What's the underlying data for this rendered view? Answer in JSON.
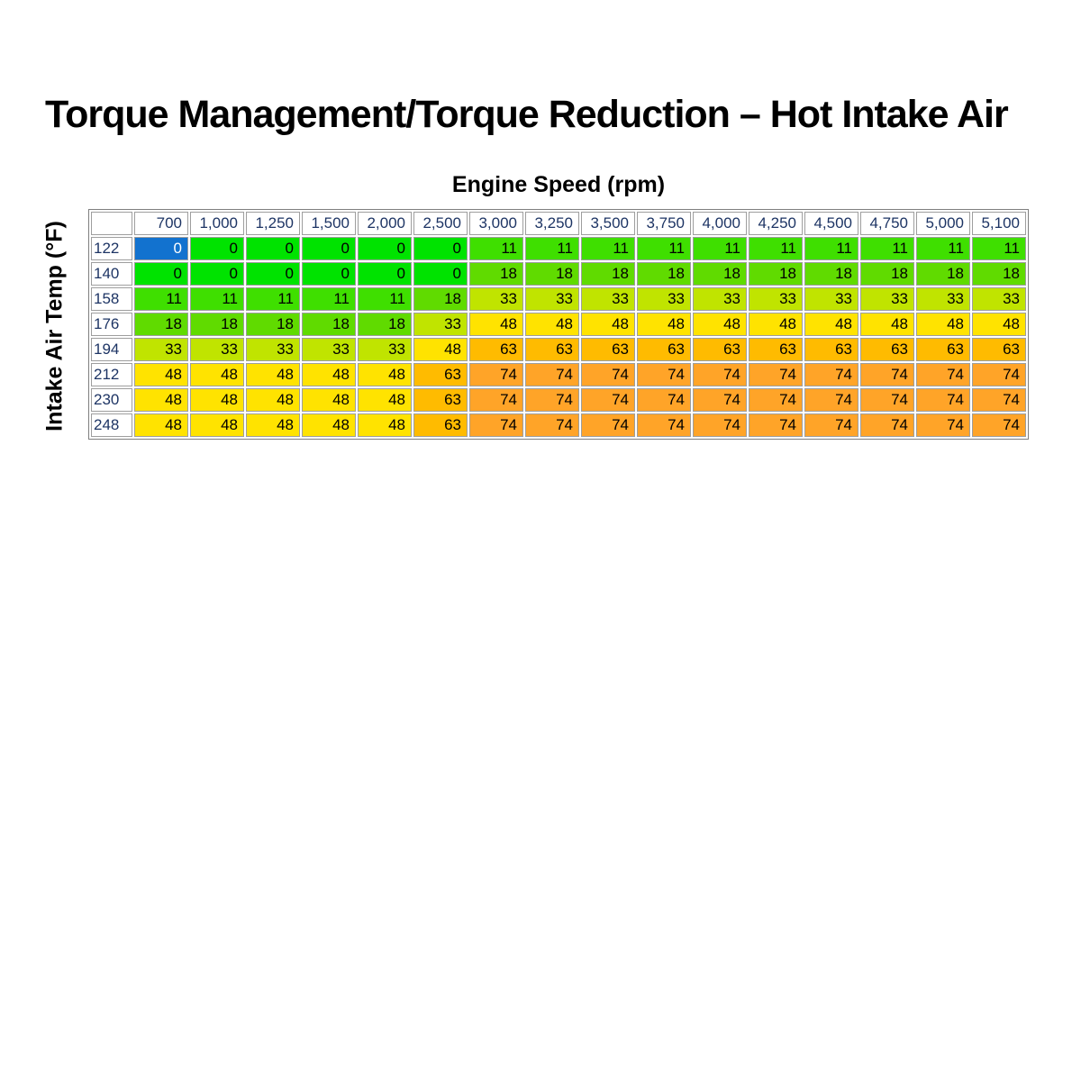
{
  "title": "Torque Management/Torque Reduction – Hot Intake Air",
  "x_axis_label": "Engine Speed (rpm)",
  "y_axis_label": "Intake Air Temp (°F)",
  "chart_data": {
    "type": "heatmap",
    "x_label": "Engine Speed (rpm)",
    "y_label": "Intake Air Temp (°F)",
    "x": [
      "700",
      "1,000",
      "1,250",
      "1,500",
      "2,000",
      "2,500",
      "3,000",
      "3,250",
      "3,500",
      "3,750",
      "4,000",
      "4,250",
      "4,500",
      "4,750",
      "5,000",
      "5,100"
    ],
    "y": [
      "122",
      "140",
      "158",
      "176",
      "194",
      "212",
      "230",
      "248"
    ],
    "values": [
      [
        0,
        0,
        0,
        0,
        0,
        0,
        11,
        11,
        11,
        11,
        11,
        11,
        11,
        11,
        11,
        11
      ],
      [
        0,
        0,
        0,
        0,
        0,
        0,
        18,
        18,
        18,
        18,
        18,
        18,
        18,
        18,
        18,
        18
      ],
      [
        11,
        11,
        11,
        11,
        11,
        18,
        33,
        33,
        33,
        33,
        33,
        33,
        33,
        33,
        33,
        33
      ],
      [
        18,
        18,
        18,
        18,
        18,
        33,
        48,
        48,
        48,
        48,
        48,
        48,
        48,
        48,
        48,
        48
      ],
      [
        33,
        33,
        33,
        33,
        33,
        48,
        63,
        63,
        63,
        63,
        63,
        63,
        63,
        63,
        63,
        63
      ],
      [
        48,
        48,
        48,
        48,
        48,
        63,
        74,
        74,
        74,
        74,
        74,
        74,
        74,
        74,
        74,
        74
      ],
      [
        48,
        48,
        48,
        48,
        48,
        63,
        74,
        74,
        74,
        74,
        74,
        74,
        74,
        74,
        74,
        74
      ],
      [
        48,
        48,
        48,
        48,
        48,
        63,
        74,
        74,
        74,
        74,
        74,
        74,
        74,
        74,
        74,
        74
      ]
    ]
  },
  "selected_cell": {
    "row_index": 0,
    "col_index": 0
  },
  "colors": {
    "value_fill": {
      "0": "#00e300",
      "11": "#3fdf00",
      "18": "#60db00",
      "33": "#c0e400",
      "48": "#ffe300",
      "63": "#ffbb00",
      "74": "#ffa428"
    },
    "selected_fill": "#1272cf",
    "selected_text": "#ffffff",
    "header_text": "#1d3464",
    "cell_text": "#000000",
    "grid_line": "#9e9e9e"
  }
}
